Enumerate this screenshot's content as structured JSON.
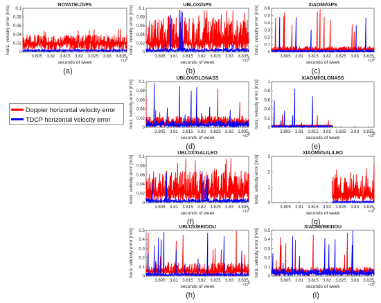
{
  "legend": {
    "doppler": {
      "label": "Doppler horizontal velocity error",
      "color": "#ff0000"
    },
    "tdcp": {
      "label": "TDCP horizontal velocity error",
      "color": "#0000ff"
    }
  },
  "common": {
    "xlabel": "seconds of week",
    "ylabel": "horiz. velocity error [m/s]",
    "x_exponent": "×10",
    "x_exponent_power": "5",
    "xlim": [
      3.8,
      3.837
    ]
  },
  "chart_data": [
    {
      "type": "line",
      "panel": "a",
      "title": "NOVATEL/GPS",
      "caption": "(a)",
      "ylim": [
        0,
        0.1
      ],
      "yticks": [
        "0",
        "0.02",
        "0.04",
        "0.06",
        "0.08",
        "0.1"
      ],
      "xticks": [
        3.805,
        3.81,
        3.815,
        3.82,
        3.825,
        3.83,
        3.835
      ],
      "xticklabels": [
        "3.805",
        "3.81",
        "3.815",
        "3.82",
        "3.825",
        "3.83",
        "3.835"
      ],
      "xrange": [
        3.8,
        3.837
      ],
      "series": [
        {
          "name": "Doppler horizontal velocity error",
          "x_range": [
            3.8,
            3.837
          ],
          "baseline": 0.02,
          "typical_peak": 0.04,
          "max": 0.055
        },
        {
          "name": "TDCP horizontal velocity error",
          "x_range": [
            3.8,
            3.837
          ],
          "baseline": 0.003,
          "typical_peak": 0.006,
          "max": 0.01
        }
      ]
    },
    {
      "type": "line",
      "panel": "b",
      "title": "UBLOX/GPS",
      "caption": "(b)",
      "ylim": [
        0,
        0.1
      ],
      "yticks": [
        "0",
        "0.02",
        "0.04",
        "0.06",
        "0.08",
        "0.1"
      ],
      "xticks": [
        3.805,
        3.81,
        3.815,
        3.82,
        3.825,
        3.83,
        3.835
      ],
      "xticklabels": [
        "3.805",
        "3.81",
        "3.815",
        "3.82",
        "3.825",
        "3.83",
        "3.835"
      ],
      "xrange": [
        3.8,
        3.837
      ],
      "series": [
        {
          "name": "Doppler horizontal velocity error",
          "x_range": [
            3.8,
            3.837
          ],
          "baseline": 0.02,
          "typical_peak": 0.08,
          "max": 0.1
        },
        {
          "name": "TDCP horizontal velocity error",
          "x_range": [
            3.8,
            3.837
          ],
          "baseline": 0.003,
          "typical_peak": 0.01,
          "max": 0.1
        }
      ]
    },
    {
      "type": "line",
      "panel": "c",
      "title": "XIAOMI/GPS",
      "caption": "(c)",
      "ylim": [
        0,
        0.6
      ],
      "yticks": [
        "0",
        "0.1",
        "0.2",
        "0.3",
        "0.4",
        "0.5",
        "0.6"
      ],
      "xticks": [
        3.805,
        3.81,
        3.815,
        3.82,
        3.825,
        3.83,
        3.835
      ],
      "xticklabels": [
        "3.805",
        "3.81",
        "3.815",
        "3.82",
        "3.825",
        "3.83",
        "3.835"
      ],
      "xrange": [
        3.8,
        3.837
      ],
      "series": [
        {
          "name": "Doppler horizontal velocity error",
          "x_range": [
            3.8,
            3.837
          ],
          "baseline": 0.03,
          "typical_peak": 0.08,
          "max": 0.6
        },
        {
          "name": "TDCP horizontal velocity error",
          "x_range": [
            3.8,
            3.837
          ],
          "baseline": 0.01,
          "typical_peak": 0.03,
          "max": 0.6
        }
      ]
    },
    {
      "type": "line",
      "panel": "d",
      "title": "UBLOX/GLONASS",
      "caption": "(d)",
      "ylim": [
        0,
        0.1
      ],
      "yticks": [
        "0",
        "0.02",
        "0.04",
        "0.06",
        "0.08",
        "0.1"
      ],
      "xticks": [
        3.805,
        3.81,
        3.815,
        3.82,
        3.825,
        3.83,
        3.835
      ],
      "xticklabels": [
        "3.805",
        "3.81",
        "3.815",
        "3.82",
        "3.825",
        "3.83",
        "3.835"
      ],
      "xrange": [
        3.8,
        3.837
      ],
      "series": [
        {
          "name": "Doppler horizontal velocity error",
          "x_range": [
            3.8,
            3.837
          ],
          "baseline": 0.01,
          "typical_peak": 0.025,
          "max": 0.1
        },
        {
          "name": "TDCP horizontal velocity error",
          "x_range": [
            3.8,
            3.837
          ],
          "baseline": 0.005,
          "typical_peak": 0.015,
          "max": 0.1
        }
      ]
    },
    {
      "type": "line",
      "panel": "e",
      "title": "XIAOMI/GLONASS",
      "caption": "(e)",
      "ylim": [
        0,
        1
      ],
      "yticks": [
        "0",
        "0.2",
        "0.4",
        "0.6",
        "0.8",
        "1"
      ],
      "xticks": [
        3.805,
        3.81,
        3.815,
        3.82,
        3.825,
        3.83,
        3.835
      ],
      "xticklabels": [
        "3.805",
        "3.81",
        "3.815",
        "3.82",
        "3.825",
        "3.83",
        "3.835"
      ],
      "xrange": [
        3.8,
        3.837
      ],
      "series": [
        {
          "name": "Doppler horizontal velocity error",
          "x_range": [
            3.8,
            3.822
          ],
          "baseline": 0.03,
          "typical_peak": 0.06,
          "max": 0.3
        },
        {
          "name": "TDCP horizontal velocity error",
          "x_range": [
            3.8,
            3.822
          ],
          "baseline": 0.02,
          "typical_peak": 0.04,
          "max": 0.9
        }
      ]
    },
    {
      "type": "line",
      "panel": "f",
      "title": "UBLOX/GALILEO",
      "caption": "(f)",
      "ylim": [
        0,
        0.1
      ],
      "yticks": [
        "0",
        "0.02",
        "0.04",
        "0.06",
        "0.08",
        "0.1"
      ],
      "xticks": [
        3.805,
        3.81,
        3.815,
        3.82,
        3.825,
        3.83,
        3.835
      ],
      "xticklabels": [
        "3.805",
        "3.81",
        "3.815",
        "3.82",
        "3.825",
        "3.83",
        "3.835"
      ],
      "xrange": [
        3.8,
        3.837
      ],
      "series": [
        {
          "name": "Doppler horizontal velocity error",
          "x_range": [
            3.8,
            3.837
          ],
          "baseline": 0.02,
          "typical_peak": 0.07,
          "max": 0.1
        },
        {
          "name": "TDCP horizontal velocity error",
          "x_range": [
            3.8,
            3.837
          ],
          "baseline": 0.003,
          "typical_peak": 0.01,
          "max": 0.09
        }
      ]
    },
    {
      "type": "line",
      "panel": "g",
      "title": "XIAOMI/GALILEO",
      "caption": "(g)",
      "ylim": [
        0,
        3
      ],
      "yticks": [
        "0",
        "1",
        "2",
        "3"
      ],
      "xticks": [
        3.805,
        3.81,
        3.815,
        3.82,
        3.825,
        3.83,
        3.835
      ],
      "xticklabels": [
        "3.805",
        "3.81",
        "3.815",
        "3.82",
        "3.825",
        "3.83",
        "3.835"
      ],
      "xrange": [
        3.8,
        3.837
      ],
      "series": [
        {
          "name": "Doppler horizontal velocity error",
          "x_range": [
            3.822,
            3.837
          ],
          "baseline": 0.5,
          "typical_peak": 1.8,
          "max": 2.9
        },
        {
          "name": "TDCP horizontal velocity error",
          "x_range": [
            3.822,
            3.837
          ],
          "baseline": 0.05,
          "typical_peak": 0.1,
          "max": 0.2
        }
      ]
    },
    {
      "type": "line",
      "panel": "h",
      "title": "UBLOX/BEIDOU",
      "caption": "(h)",
      "ylim": [
        0,
        0.5
      ],
      "yticks": [
        "0",
        "0.1",
        "0.2",
        "0.3",
        "0.4",
        "0.5"
      ],
      "xticks": [
        3.805,
        3.81,
        3.815,
        3.82,
        3.825,
        3.83,
        3.835
      ],
      "xticklabels": [
        "3.805",
        "3.81",
        "3.815",
        "3.82",
        "3.825",
        "3.83",
        "3.835"
      ],
      "xrange": [
        3.8,
        3.837
      ],
      "series": [
        {
          "name": "Doppler horizontal velocity error",
          "x_range": [
            3.8,
            3.837
          ],
          "baseline": 0.05,
          "typical_peak": 0.15,
          "max": 0.5
        },
        {
          "name": "TDCP horizontal velocity error",
          "x_range": [
            3.8,
            3.837
          ],
          "baseline": 0.01,
          "typical_peak": 0.04,
          "max": 0.5
        }
      ]
    },
    {
      "type": "line",
      "panel": "i",
      "title": "XIAOMI/BEIDOU",
      "caption": "(i)",
      "ylim": [
        0,
        0.5
      ],
      "yticks": [
        "0",
        "0.1",
        "0.2",
        "0.3",
        "0.4",
        "0.5"
      ],
      "xticks": [
        3.805,
        3.81,
        3.815,
        3.82,
        3.825,
        3.83,
        3.835
      ],
      "xticklabels": [
        "3.805",
        "3.81",
        "3.815",
        "3.82",
        "3.825",
        "3.83",
        "3.835"
      ],
      "xrange": [
        3.8,
        3.837
      ],
      "series": [
        {
          "name": "Doppler horizontal velocity error",
          "x_range": [
            3.8,
            3.837
          ],
          "baseline": 0.05,
          "typical_peak": 0.1,
          "max": 0.5
        },
        {
          "name": "TDCP horizontal velocity error",
          "x_range": [
            3.8,
            3.837
          ],
          "baseline": 0.03,
          "typical_peak": 0.08,
          "max": 0.5
        }
      ]
    }
  ]
}
